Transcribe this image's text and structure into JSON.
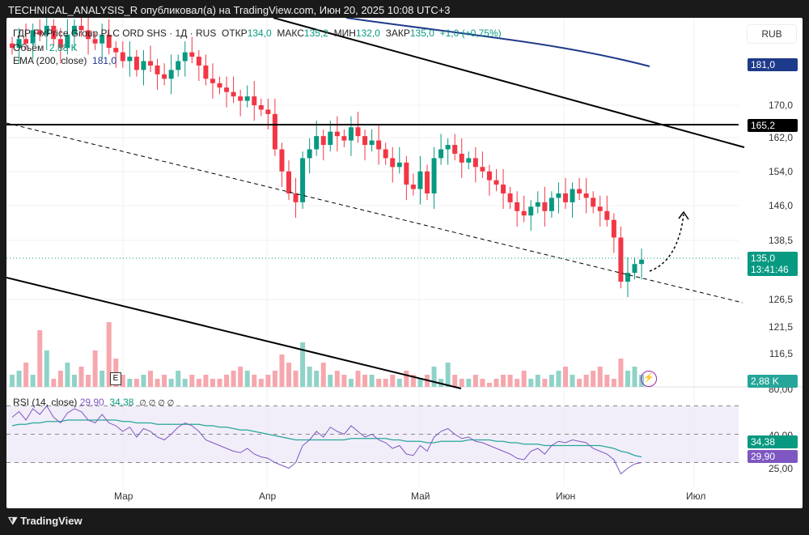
{
  "header": {
    "publisher": "TECHNICAL_ANALYSIS_R опубликовал(а) на TradingView.com, Июн 20, 2025 10:08 UTC+3"
  },
  "legend": {
    "symbol": "ГДР FixPrice Group PLC ORD SHS · 1Д · RUS",
    "o_label": "ОТКР",
    "o": "134,0",
    "h_label": "МАКС",
    "h": "135,2",
    "l_label": "МИН",
    "l": "132,0",
    "c_label": "ЗАКР",
    "c": "135,0",
    "change": "+1,0 (+0,75%)",
    "vol_label": "Объём",
    "vol": "2,88 K",
    "ema_label": "EMA (200, close)",
    "ema": "181,0"
  },
  "rsi": {
    "label": "RSI (14, close)",
    "value": "29,90",
    "ma": "34,38",
    "extras": "∅ ∅ ∅ ∅"
  },
  "currency": "RUB",
  "price_axis": [
    "170,0",
    "162,0",
    "154,0",
    "146,0",
    "138,5",
    "126,5",
    "121,5",
    "116,5"
  ],
  "rsi_axis": [
    "80,00",
    "40,00",
    "25,00"
  ],
  "tags": {
    "ema": "181,0",
    "level": "165,2",
    "price": "135,0",
    "countdown": "13:41:46",
    "volume": "2,88 K",
    "rsi_ma": "34,38",
    "rsi": "29,90"
  },
  "time_axis": [
    "Мар",
    "Апр",
    "Май",
    "Июн",
    "Июл"
  ],
  "buttons": {
    "e": "E",
    "bolt": "⚡"
  },
  "footer": "TradingView",
  "colors": {
    "up": "#089981",
    "down": "#f23645",
    "ema": "#1e3a8a",
    "rsi": "#7e57c2"
  },
  "closes": [
    183,
    185,
    184,
    187,
    186,
    188,
    185,
    183,
    186,
    188,
    187,
    185,
    184,
    186,
    183,
    182,
    180,
    181,
    178,
    180,
    179,
    177,
    176,
    178,
    180,
    182,
    181,
    179,
    176,
    175,
    174,
    173,
    172,
    171,
    172,
    170,
    169,
    168,
    160,
    155,
    150,
    148,
    158,
    160,
    163,
    161,
    164,
    163,
    162,
    165,
    163,
    161,
    162,
    160,
    158,
    156,
    157,
    152,
    151,
    155,
    150,
    158,
    160,
    161,
    159,
    157,
    158,
    156,
    155,
    153,
    152,
    150,
    148,
    146,
    145,
    147,
    148,
    146,
    149,
    150,
    148,
    151,
    150,
    149,
    147,
    146,
    144,
    140,
    130,
    132,
    134,
    135
  ],
  "volumes": [
    3,
    4,
    6,
    3,
    14,
    9,
    2,
    4,
    6,
    3,
    5,
    3,
    9,
    4,
    16,
    7,
    3,
    2,
    2,
    3,
    4,
    2,
    3,
    2,
    4,
    2,
    3,
    2,
    3,
    2,
    2,
    3,
    4,
    5,
    4,
    3,
    2,
    3,
    4,
    8,
    6,
    4,
    11,
    5,
    4,
    6,
    3,
    4,
    3,
    2,
    4,
    3,
    3,
    2,
    2,
    3,
    2,
    4,
    3,
    2,
    3,
    5,
    2,
    6,
    3,
    2,
    2,
    3,
    2,
    1,
    2,
    3,
    3,
    2,
    4,
    2,
    3,
    2,
    3,
    4,
    5,
    3,
    2,
    3,
    4,
    5,
    3,
    2,
    7,
    4,
    5,
    3
  ],
  "rsi_values": [
    62,
    66,
    60,
    68,
    64,
    70,
    62,
    58,
    65,
    68,
    66,
    60,
    58,
    64,
    58,
    56,
    52,
    55,
    48,
    54,
    52,
    48,
    46,
    50,
    55,
    58,
    56,
    52,
    46,
    44,
    42,
    40,
    38,
    37,
    40,
    36,
    34,
    33,
    30,
    28,
    26,
    30,
    42,
    46,
    52,
    48,
    55,
    52,
    50,
    56,
    52,
    48,
    50,
    46,
    44,
    40,
    42,
    36,
    35,
    42,
    38,
    48,
    52,
    54,
    50,
    47,
    48,
    45,
    44,
    42,
    40,
    38,
    36,
    33,
    32,
    38,
    40,
    36,
    42,
    45,
    44,
    46,
    45,
    44,
    40,
    38,
    36,
    32,
    22,
    26,
    29,
    30
  ],
  "rsi_ma_values": [
    56,
    57,
    57,
    58,
    58,
    59,
    59,
    59,
    60,
    60,
    60,
    60,
    60,
    60,
    60,
    60,
    59,
    59,
    58,
    58,
    58,
    57,
    57,
    57,
    57,
    57,
    57,
    57,
    56,
    56,
    55,
    55,
    54,
    53,
    53,
    52,
    51,
    50,
    49,
    48,
    47,
    46,
    46,
    46,
    46,
    46,
    46,
    46,
    46,
    47,
    47,
    47,
    47,
    47,
    47,
    46,
    46,
    45,
    45,
    45,
    44,
    44,
    45,
    45,
    45,
    45,
    46,
    46,
    46,
    46,
    45,
    45,
    44,
    44,
    43,
    43,
    43,
    42,
    42,
    42,
    42,
    42,
    42,
    42,
    42,
    42,
    41,
    40,
    38,
    37,
    35,
    34
  ]
}
